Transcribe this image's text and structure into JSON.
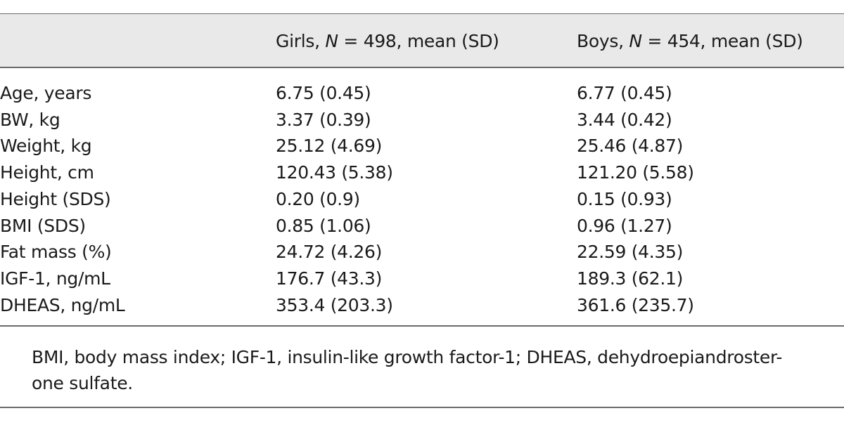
{
  "table": {
    "columns": [
      "",
      "Girls, N = 498, mean (SD)",
      "Boys, N = 454, mean (SD)"
    ],
    "header": {
      "girls_prefix": "Girls, ",
      "girls_n": "N",
      "girls_suffix": " = 498, mean (SD)",
      "boys_prefix": "Boys, ",
      "boys_n": "N",
      "boys_suffix": " = 454, mean (SD)"
    },
    "rows": [
      {
        "label": "Age, years",
        "girls": "6.75 (0.45)",
        "boys": "6.77 (0.45)"
      },
      {
        "label": "BW, kg",
        "girls": "3.37 (0.39)",
        "boys": "3.44 (0.42)"
      },
      {
        "label": "Weight, kg",
        "girls": "25.12 (4.69)",
        "boys": "25.46 (4.87)"
      },
      {
        "label": "Height, cm",
        "girls": "120.43 (5.38)",
        "boys": "121.20 (5.58)"
      },
      {
        "label": "Height (SDS)",
        "girls": "0.20 (0.9)",
        "boys": "0.15 (0.93)"
      },
      {
        "label": "BMI (SDS)",
        "girls": "0.85 (1.06)",
        "boys": "0.96 (1.27)"
      },
      {
        "label": "Fat mass (%)",
        "girls": "24.72 (4.26)",
        "boys": "22.59 (4.35)"
      },
      {
        "label": "IGF-1, ng/mL",
        "girls": "176.7 (43.3)",
        "boys": "189.3 (62.1)"
      },
      {
        "label": "DHEAS, ng/mL",
        "girls": "353.4 (203.3)",
        "boys": "361.6 (235.7)"
      }
    ]
  },
  "footnote": {
    "line1": "BMI, body mass index; IGF-1, insulin-like growth factor-1; DHEAS, dehydroepiandroster-",
    "line2": "one sulfate."
  }
}
